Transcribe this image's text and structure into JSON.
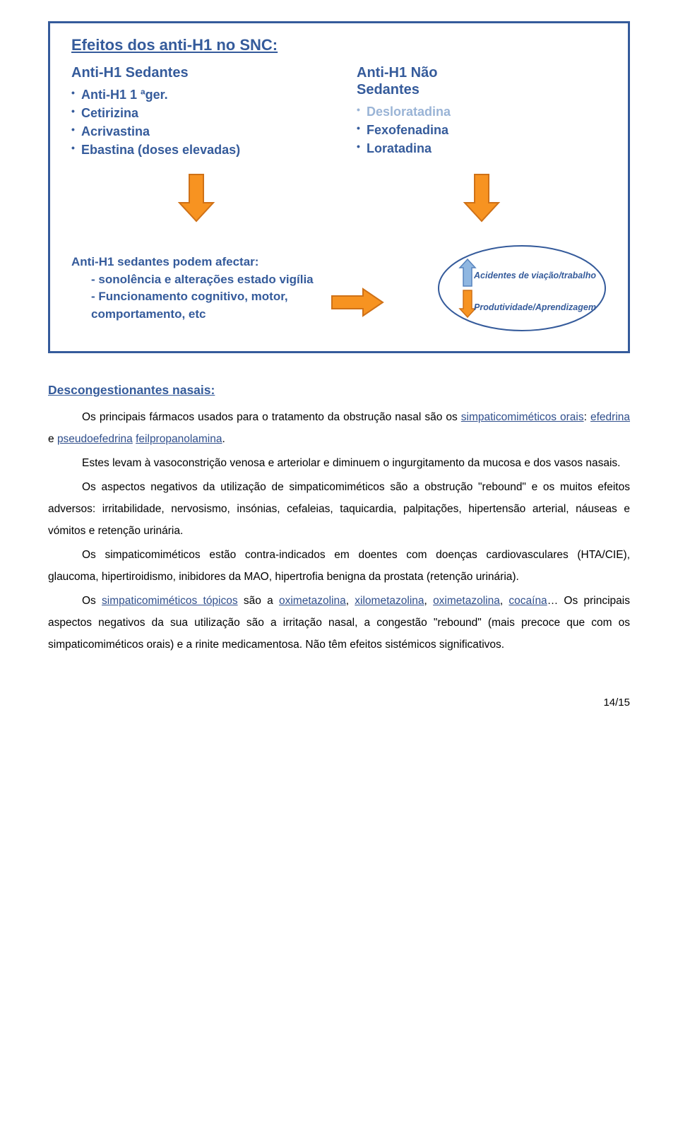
{
  "slide": {
    "title": "Efeitos dos anti-H1 no SNC:",
    "left": {
      "header": "Anti-H1 Sedantes",
      "items": [
        {
          "text": "Anti-H1 1 ªger.",
          "faded": false
        },
        {
          "text": "Cetirizina",
          "faded": false
        },
        {
          "text": "Acrivastina",
          "faded": false
        },
        {
          "text": "Ebastina (doses elevadas)",
          "faded": false
        }
      ]
    },
    "right": {
      "header_line1": "Anti-H1 Não",
      "header_line2": "Sedantes",
      "items": [
        {
          "text": "Desloratadina",
          "faded": true
        },
        {
          "text": "Fexofenadina",
          "faded": false
        },
        {
          "text": "Loratadina",
          "faded": false
        }
      ]
    },
    "affect": {
      "line1": "Anti-H1 sedantes podem afectar:",
      "line2": "- sonolência e  alterações estado vigília",
      "line3": "- Funcionamento cognitivo, motor,",
      "line4": "comportamento, etc"
    },
    "ellipse": {
      "text1": "Acidentes de viação/trabalho",
      "text2": "Produtividade/Aprendizagem"
    },
    "down_arrow_fill": "#f79321",
    "down_arrow_stroke": "#cf7117",
    "right_arrow_fill": "#f79321",
    "right_arrow_stroke": "#cf7117",
    "up_arrow_fill": "#90b7e1",
    "up_arrow_stroke": "#5783bd",
    "small_down_fill": "#f79321",
    "small_down_stroke": "#cf7117",
    "ellipse_stroke": "#355b9b"
  },
  "section_heading": "Descongestionantes nasais:",
  "p1_a": "Os principais fármacos usados para o tratamento da obstrução nasal são os ",
  "p1_link1": "simpaticomiméticos orais",
  "p1_b": ": ",
  "p1_link2": "efedrina",
  "p1_c": " e ",
  "p1_link3": "pseudoefedrina",
  "p1_d": " ",
  "p1_link4": "feilpropanolamina",
  "p1_e": ".",
  "p2": "Estes levam à vasoconstrição venosa e arteriolar e diminuem o ingurgitamento da mucosa e dos vasos nasais.",
  "p3": "Os aspectos negativos da utilização de simpaticomiméticos são a obstrução \"rebound\" e os muitos efeitos adversos: irritabilidade, nervosismo, insónias, cefaleias, taquicardia, palpitações, hipertensão arterial, náuseas e vómitos e retenção urinária.",
  "p4": "Os simpaticomiméticos estão contra-indicados em doentes com doenças cardiovasculares (HTA/CIE), glaucoma, hipertiroidismo, inibidores da MAO, hipertrofia benigna da prostata (retenção urinária).",
  "p5_a": "Os ",
  "p5_link1": "simpaticomiméticos tópicos",
  "p5_b": " são a ",
  "p5_link2": "oximetazolina",
  "p5_c": ", ",
  "p5_link3": "xilometazolina",
  "p5_d": ", ",
  "p5_link4": "oximetazolina",
  "p5_e": ", ",
  "p5_link5": "cocaína",
  "p5_f": "… Os principais aspectos negativos da sua utilização são a irritação nasal, a congestão \"rebound\" (mais precoce que com os simpaticomiméticos orais) e a rinite medicamentosa. Não têm efeitos sistémicos significativos.",
  "page_number": "14/15"
}
